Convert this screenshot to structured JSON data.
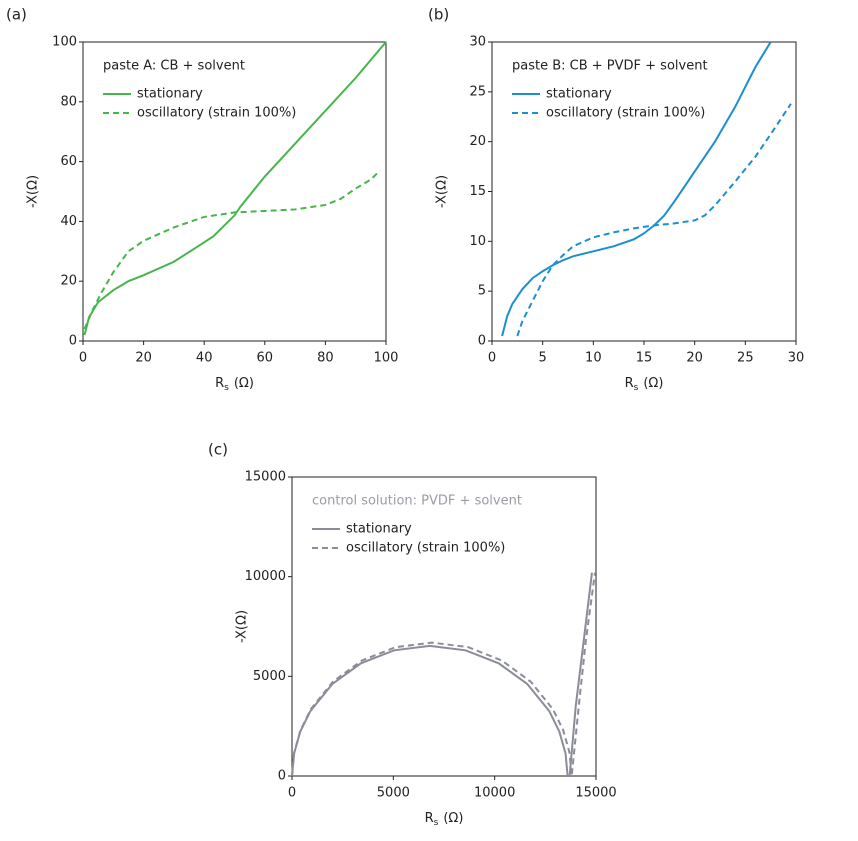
{
  "chart_data": [
    {
      "type": "line",
      "panel_label": "(a)",
      "annotation": "paste A: CB + solvent",
      "annotation_color": "#222222",
      "xlabel": {
        "base": "R",
        "sub": "s",
        "unit": "(Ω)"
      },
      "ylabel": "-X(Ω)",
      "xlim": [
        0,
        100
      ],
      "ylim": [
        0,
        100
      ],
      "xticks": [
        0,
        20,
        40,
        60,
        80,
        100
      ],
      "yticks": [
        0,
        20,
        40,
        60,
        80,
        100
      ],
      "series": [
        {
          "name": "stationary",
          "color": "#45b64a",
          "dashed": false,
          "x": [
            0.5,
            2,
            5,
            10,
            15,
            20,
            30,
            40,
            43,
            50,
            52,
            60,
            70,
            80,
            90,
            100
          ],
          "values": [
            2,
            8,
            13,
            17,
            20,
            22,
            26.5,
            33,
            35,
            42,
            45,
            55,
            66,
            77,
            88,
            100
          ]
        },
        {
          "name": "oscillatory (strain 100%)",
          "color": "#45b64a",
          "dashed": true,
          "x": [
            0.5,
            3,
            6,
            10,
            15,
            20,
            30,
            40,
            50,
            60,
            70,
            80,
            85,
            90,
            95,
            97,
            98
          ],
          "values": [
            4,
            10,
            16,
            23,
            30,
            33.5,
            38,
            41.5,
            43,
            43.5,
            44,
            45.5,
            47.5,
            51,
            54,
            56,
            57
          ]
        }
      ]
    },
    {
      "type": "line",
      "panel_label": "(b)",
      "annotation": "paste B: CB + PVDF + solvent",
      "annotation_color": "#222222",
      "xlabel": {
        "base": "R",
        "sub": "s",
        "unit": "(Ω)"
      },
      "ylabel": "-X(Ω)",
      "xlim": [
        0,
        30
      ],
      "ylim": [
        0,
        30
      ],
      "xticks": [
        0,
        5,
        10,
        15,
        20,
        25,
        30
      ],
      "yticks": [
        0,
        5,
        10,
        15,
        20,
        25,
        30
      ],
      "series": [
        {
          "name": "stationary",
          "color": "#1b8fcf",
          "dashed": false,
          "x": [
            1,
            1.5,
            2,
            3,
            4,
            5,
            6,
            7,
            8,
            10,
            12,
            14,
            15,
            16,
            17,
            18,
            19,
            20,
            22,
            24,
            26,
            27.5
          ],
          "values": [
            0.5,
            2.5,
            3.7,
            5.2,
            6.3,
            7,
            7.6,
            8.1,
            8.5,
            9,
            9.5,
            10.2,
            10.8,
            11.6,
            12.6,
            14,
            15.5,
            17,
            20,
            23.5,
            27.5,
            30
          ]
        },
        {
          "name": "oscillatory (strain 100%)",
          "color": "#1b8fcf",
          "dashed": true,
          "x": [
            2.5,
            3,
            4,
            5,
            6,
            7,
            8,
            10,
            12,
            14,
            16,
            18,
            20,
            21,
            22,
            24,
            26,
            28,
            29.5
          ],
          "values": [
            0.5,
            2,
            4,
            6,
            7.6,
            8.6,
            9.5,
            10.4,
            10.9,
            11.3,
            11.6,
            11.8,
            12.1,
            12.6,
            13.6,
            16,
            18.5,
            21.5,
            23.8
          ]
        }
      ]
    },
    {
      "type": "line",
      "panel_label": "(c)",
      "annotation": "control solution: PVDF + solvent",
      "annotation_color": "#9a9ca6",
      "xlabel": {
        "base": "R",
        "sub": "s",
        "unit": "(Ω)"
      },
      "ylabel": "-X(Ω)",
      "xlim": [
        0,
        15000
      ],
      "ylim": [
        0,
        15000
      ],
      "xticks": [
        0,
        5000,
        10000,
        15000
      ],
      "yticks": [
        0,
        5000,
        10000,
        15000
      ],
      "series": [
        {
          "name": "stationary",
          "color": "#8a8c98",
          "dashed": false,
          "x": [
            0,
            104,
            410,
            911,
            1992,
            3400,
            5040,
            6800,
            8560,
            10200,
            11608,
            12689,
            13190,
            13496,
            13600,
            13700,
            14000,
            14300,
            14800
          ],
          "values": [
            0,
            1134,
            2233,
            3264,
            4616,
            5653,
            6305,
            6528,
            6305,
            5653,
            4616,
            3264,
            2233,
            1134,
            0,
            0,
            3500,
            6000,
            10200
          ]
        },
        {
          "name": "oscillatory (strain 100%)",
          "color": "#8a8c98",
          "dashed": true,
          "x": [
            0,
            105,
            416,
            924,
            2021,
            3450,
            5114,
            6900,
            8686,
            10350,
            11779,
            12876,
            13384,
            13695,
            13800,
            14200,
            14500,
            14950
          ],
          "values": [
            0,
            1162,
            2289,
            3346,
            4733,
            5796,
            6465,
            6693,
            6465,
            5796,
            4733,
            3346,
            2289,
            1162,
            0,
            4000,
            6800,
            10200
          ]
        }
      ]
    }
  ]
}
